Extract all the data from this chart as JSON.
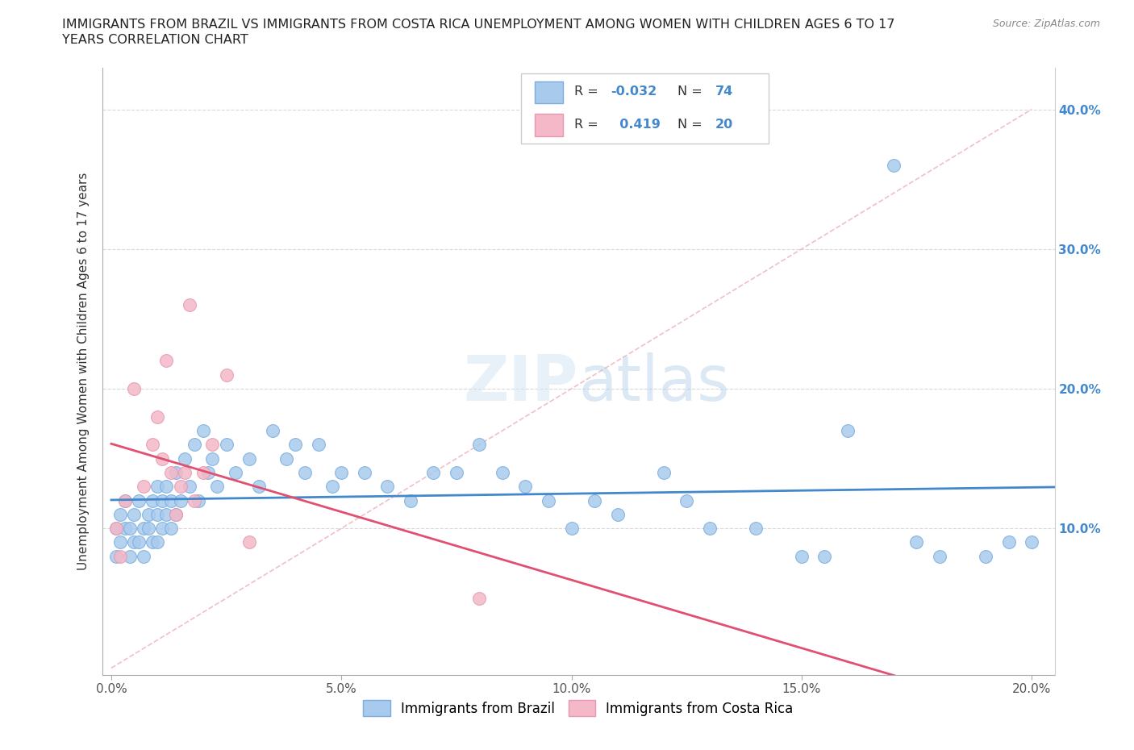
{
  "title_line1": "IMMIGRANTS FROM BRAZIL VS IMMIGRANTS FROM COSTA RICA UNEMPLOYMENT AMONG WOMEN WITH CHILDREN AGES 6 TO 17",
  "title_line2": "YEARS CORRELATION CHART",
  "source_text": "Source: ZipAtlas.com",
  "ylabel": "Unemployment Among Women with Children Ages 6 to 17 years",
  "xlim": [
    -0.002,
    0.205
  ],
  "ylim": [
    -0.005,
    0.43
  ],
  "x_ticks": [
    0.0,
    0.05,
    0.1,
    0.15,
    0.2
  ],
  "y_ticks": [
    0.0,
    0.1,
    0.2,
    0.3,
    0.4
  ],
  "x_tick_labels": [
    "0.0%",
    "5.0%",
    "10.0%",
    "15.0%",
    "20.0%"
  ],
  "y_tick_labels_left": [
    "",
    "",
    "",
    "",
    ""
  ],
  "y_tick_labels_right": [
    "",
    "10.0%",
    "20.0%",
    "30.0%",
    "40.0%"
  ],
  "brazil_color": "#a8caed",
  "brazil_edge": "#7aade0",
  "costa_rica_color": "#f4b8c8",
  "costa_rica_edge": "#e898b0",
  "brazil_line_color": "#4488cc",
  "costa_rica_line_color": "#e05070",
  "diagonal_color": "#f0b8c0",
  "watermark_color": "#c8dff0",
  "brazil_N": 74,
  "costa_rica_N": 20,
  "brazil_x": [
    0.001,
    0.001,
    0.002,
    0.002,
    0.003,
    0.003,
    0.004,
    0.004,
    0.005,
    0.005,
    0.006,
    0.006,
    0.007,
    0.007,
    0.008,
    0.008,
    0.009,
    0.009,
    0.01,
    0.01,
    0.01,
    0.011,
    0.011,
    0.012,
    0.012,
    0.013,
    0.013,
    0.014,
    0.014,
    0.015,
    0.016,
    0.017,
    0.018,
    0.019,
    0.02,
    0.021,
    0.022,
    0.023,
    0.025,
    0.027,
    0.03,
    0.032,
    0.035,
    0.038,
    0.04,
    0.042,
    0.045,
    0.048,
    0.05,
    0.055,
    0.06,
    0.065,
    0.07,
    0.075,
    0.08,
    0.085,
    0.09,
    0.095,
    0.1,
    0.105,
    0.11,
    0.12,
    0.125,
    0.13,
    0.14,
    0.15,
    0.155,
    0.16,
    0.17,
    0.175,
    0.18,
    0.19,
    0.195,
    0.2
  ],
  "brazil_y": [
    0.1,
    0.08,
    0.11,
    0.09,
    0.12,
    0.1,
    0.1,
    0.08,
    0.11,
    0.09,
    0.12,
    0.09,
    0.1,
    0.08,
    0.11,
    0.1,
    0.12,
    0.09,
    0.13,
    0.11,
    0.09,
    0.12,
    0.1,
    0.13,
    0.11,
    0.12,
    0.1,
    0.14,
    0.11,
    0.12,
    0.15,
    0.13,
    0.16,
    0.12,
    0.17,
    0.14,
    0.15,
    0.13,
    0.16,
    0.14,
    0.15,
    0.13,
    0.17,
    0.15,
    0.16,
    0.14,
    0.16,
    0.13,
    0.14,
    0.14,
    0.13,
    0.12,
    0.14,
    0.14,
    0.16,
    0.14,
    0.13,
    0.12,
    0.1,
    0.12,
    0.11,
    0.14,
    0.12,
    0.1,
    0.1,
    0.08,
    0.08,
    0.17,
    0.36,
    0.09,
    0.08,
    0.08,
    0.09,
    0.09
  ],
  "costa_rica_x": [
    0.001,
    0.002,
    0.003,
    0.005,
    0.007,
    0.009,
    0.01,
    0.011,
    0.012,
    0.013,
    0.014,
    0.015,
    0.016,
    0.017,
    0.018,
    0.02,
    0.022,
    0.025,
    0.03,
    0.08
  ],
  "costa_rica_y": [
    0.1,
    0.08,
    0.12,
    0.2,
    0.13,
    0.16,
    0.18,
    0.15,
    0.22,
    0.14,
    0.11,
    0.13,
    0.14,
    0.26,
    0.12,
    0.14,
    0.16,
    0.21,
    0.09,
    0.05
  ]
}
